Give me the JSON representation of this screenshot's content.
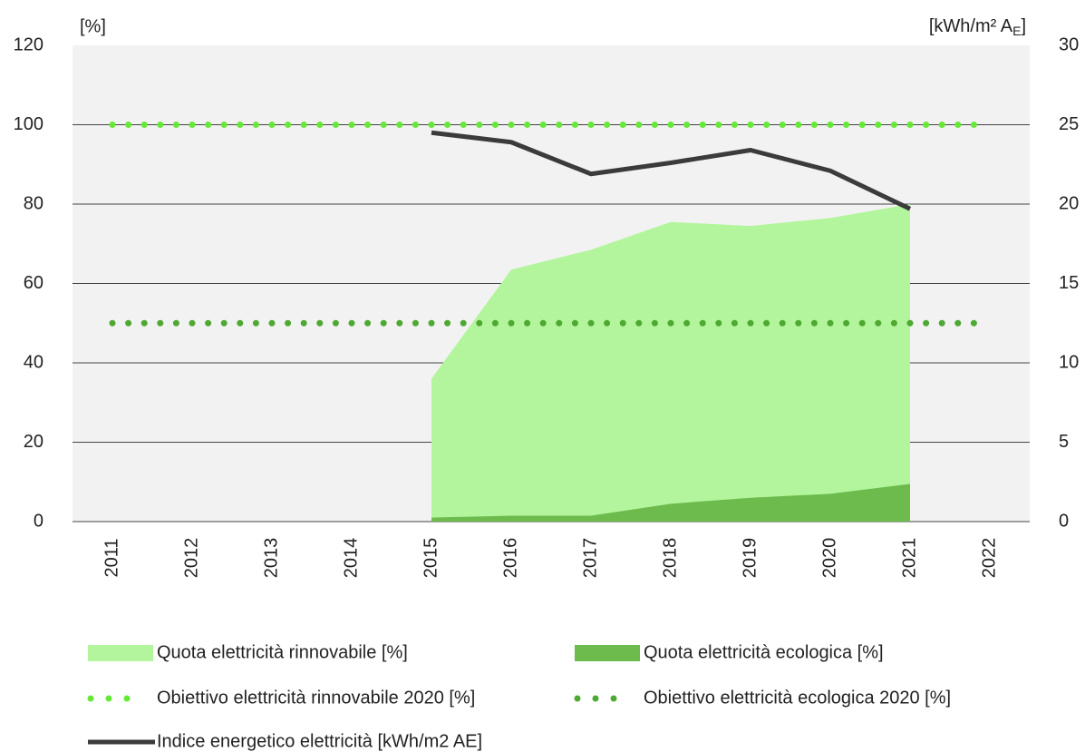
{
  "chart_data": {
    "type": "line",
    "y_label": "[%]",
    "y2_label": [
      "[kWh/m² A",
      "E",
      "]"
    ],
    "categories": [
      "2011",
      "2012",
      "2013",
      "2014",
      "2015",
      "2016",
      "2017",
      "2018",
      "2019",
      "2020",
      "2021",
      "2022"
    ],
    "series": [
      {
        "name": "Quota elettricità rinnovabile [%]",
        "kind": "area",
        "color": "#b3f59c",
        "values": [
          null,
          null,
          null,
          null,
          36,
          63.5,
          68.5,
          75.5,
          74.5,
          76.5,
          80,
          null
        ]
      },
      {
        "name": "Quota elettricità ecologica [%]",
        "kind": "area",
        "color": "#6cbb4c",
        "values": [
          null,
          null,
          null,
          null,
          1,
          1.5,
          1.5,
          4.5,
          6,
          7,
          9.5,
          null
        ]
      },
      {
        "name": "Obiettivo elettricità rinnovabile 2020 [%]",
        "kind": "dots",
        "color": "#66e836",
        "values": [
          100,
          100,
          100,
          100,
          100,
          100,
          100,
          100,
          100,
          100,
          100,
          100
        ]
      },
      {
        "name": "Obiettivo elettricità ecologica 2020 [%]",
        "kind": "dots",
        "color": "#4ea832",
        "values": [
          50,
          50,
          50,
          50,
          50,
          50,
          50,
          50,
          50,
          50,
          50,
          50
        ]
      },
      {
        "name": "Indice energetico elettricità [kWh/m2 AE]",
        "kind": "line",
        "color": "#3b3b3b",
        "axis": "y2",
        "values": [
          null,
          null,
          null,
          null,
          24.5,
          23.9,
          21.9,
          22.6,
          23.4,
          22.1,
          19.7,
          null
        ]
      }
    ],
    "ylim": [
      0,
      120
    ],
    "yticks": [
      0,
      20,
      40,
      60,
      80,
      100,
      120
    ],
    "y2lim": [
      0,
      30
    ],
    "y2ticks": [
      0,
      5,
      10,
      15,
      20,
      25,
      30
    ],
    "grid": true
  }
}
